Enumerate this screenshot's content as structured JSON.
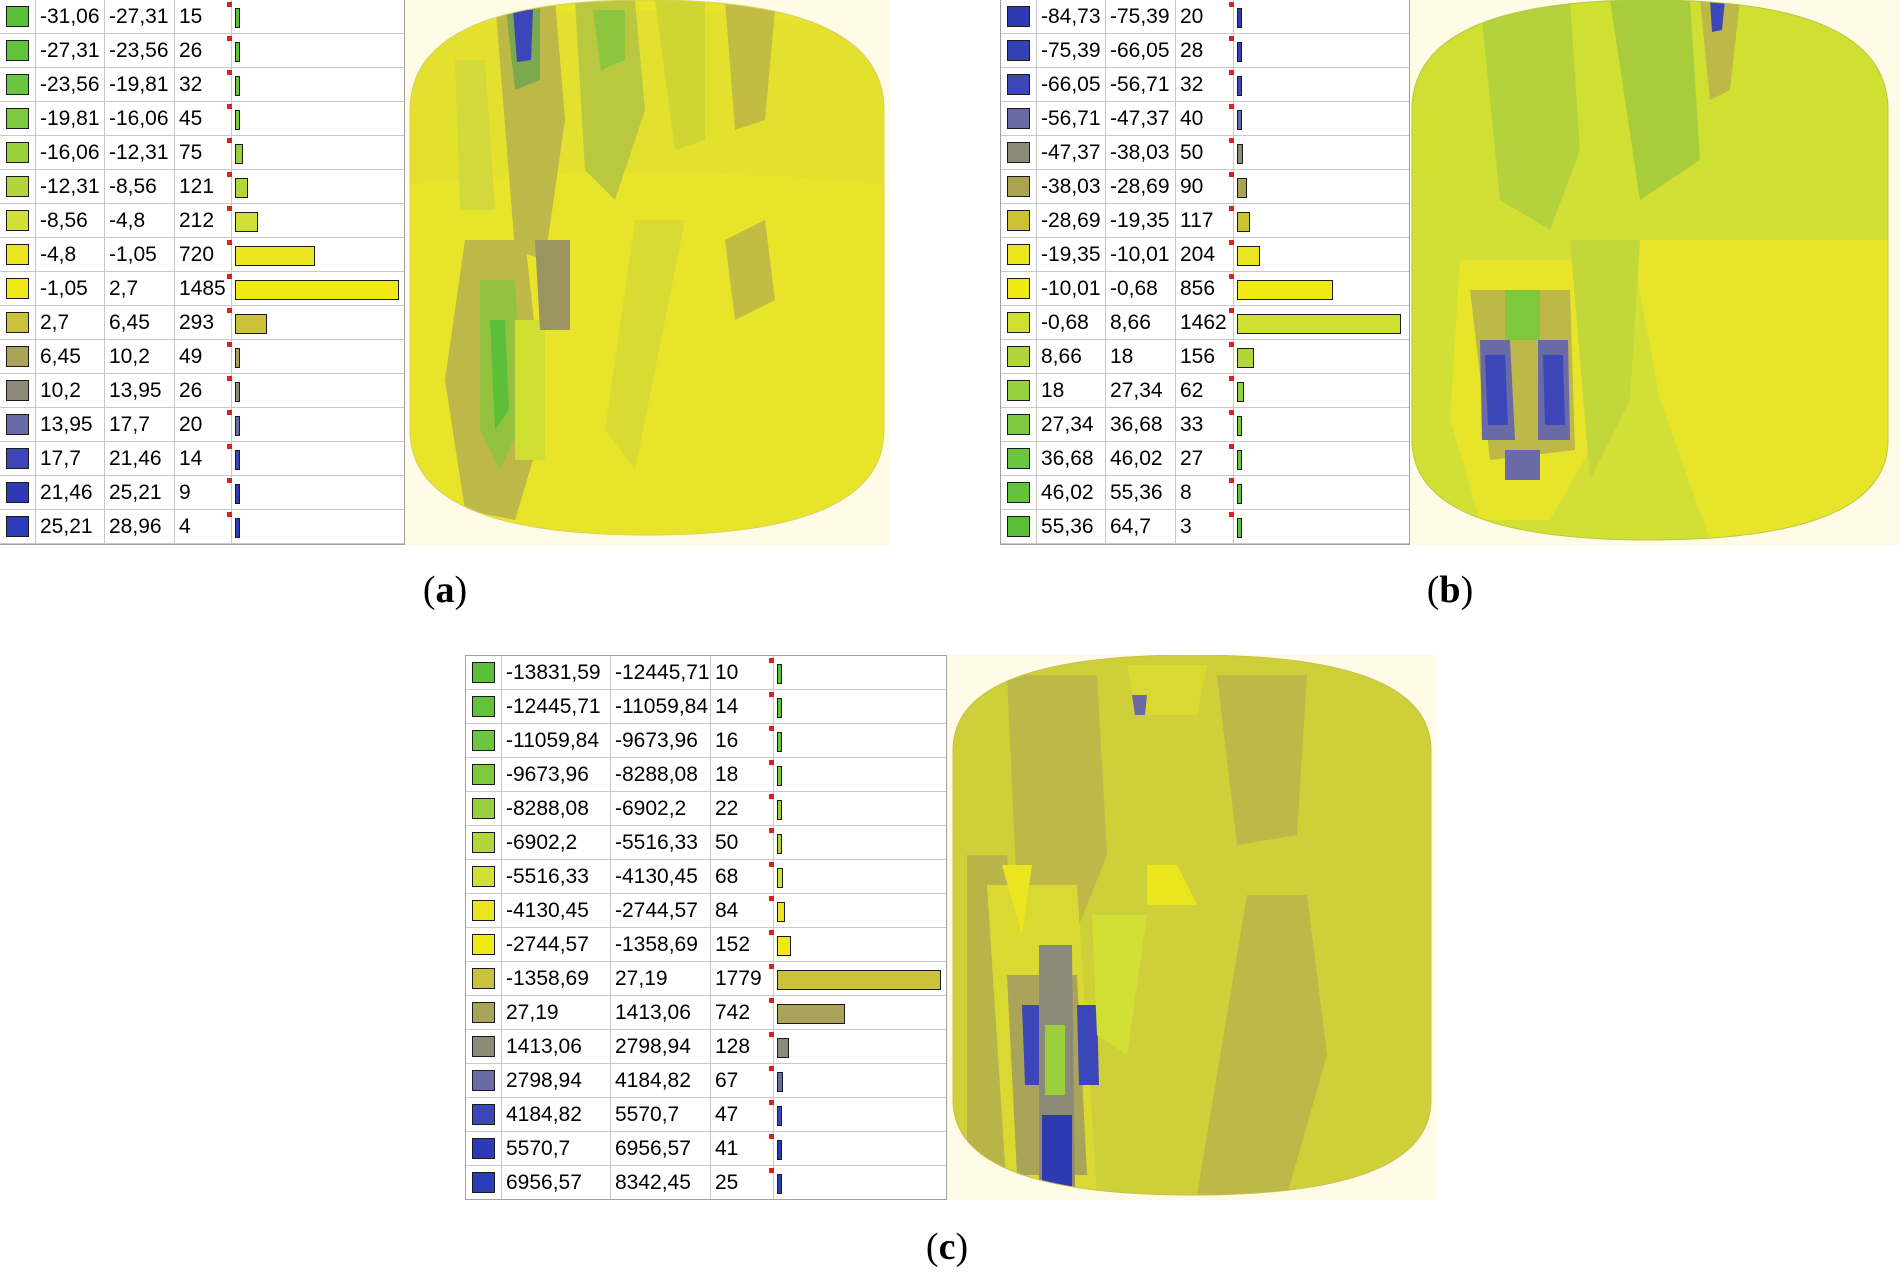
{
  "panels": [
    {
      "caption_letter": "a",
      "rows": [
        {
          "from": "-31,06",
          "to": "-27,31",
          "count": 15,
          "color": "#5cbf3a"
        },
        {
          "from": "-27,31",
          "to": "-23,56",
          "count": 26,
          "color": "#62c23c"
        },
        {
          "from": "-23,56",
          "to": "-19,81",
          "count": 32,
          "color": "#6cc53e"
        },
        {
          "from": "-19,81",
          "to": "-16,06",
          "count": 45,
          "color": "#7ec83e"
        },
        {
          "from": "-16,06",
          "to": "-12,31",
          "count": 75,
          "color": "#98cf3c"
        },
        {
          "from": "-12,31",
          "to": "-8,56",
          "count": 121,
          "color": "#b2d63a"
        },
        {
          "from": "-8,56",
          "to": "-4,8",
          "count": 212,
          "color": "#d2df34"
        },
        {
          "from": "-4,8",
          "to": "-1,05",
          "count": 720,
          "color": "#eae51e"
        },
        {
          "from": "-1,05",
          "to": "2,7",
          "count": 1485,
          "color": "#f0ea16"
        },
        {
          "from": "2,7",
          "to": "6,45",
          "count": 293,
          "color": "#c9c23a"
        },
        {
          "from": "6,45",
          "to": "10,2",
          "count": 49,
          "color": "#a9a45a"
        },
        {
          "from": "10,2",
          "to": "13,95",
          "count": 26,
          "color": "#8c8a78"
        },
        {
          "from": "13,95",
          "to": "17,7",
          "count": 20,
          "color": "#6a6aa6"
        },
        {
          "from": "17,7",
          "to": "21,46",
          "count": 14,
          "color": "#3d46b8"
        },
        {
          "from": "21,46",
          "to": "25,21",
          "count": 9,
          "color": "#2e3ab4"
        },
        {
          "from": "25,21",
          "to": "28,96",
          "count": 4,
          "color": "#2a3cb8"
        }
      ]
    },
    {
      "caption_letter": "b",
      "rows": [
        {
          "from": "-84,73",
          "to": "-75,39",
          "count": 20,
          "color": "#2e3ab4"
        },
        {
          "from": "-75,39",
          "to": "-66,05",
          "count": 28,
          "color": "#3440b6"
        },
        {
          "from": "-66,05",
          "to": "-56,71",
          "count": 32,
          "color": "#3d46b8"
        },
        {
          "from": "-56,71",
          "to": "-47,37",
          "count": 40,
          "color": "#6a6aa6"
        },
        {
          "from": "-47,37",
          "to": "-38,03",
          "count": 50,
          "color": "#8c8a78"
        },
        {
          "from": "-38,03",
          "to": "-28,69",
          "count": 90,
          "color": "#aaa450"
        },
        {
          "from": "-28,69",
          "to": "-19,35",
          "count": 117,
          "color": "#cbc232"
        },
        {
          "from": "-19,35",
          "to": "-10,01",
          "count": 204,
          "color": "#eae51e"
        },
        {
          "from": "-10,01",
          "to": "-0,68",
          "count": 856,
          "color": "#f0ea16"
        },
        {
          "from": "-0,68",
          "to": "8,66",
          "count": 1462,
          "color": "#cfe032"
        },
        {
          "from": "8,66",
          "to": "18",
          "count": 156,
          "color": "#b2d63a"
        },
        {
          "from": "18",
          "to": "27,34",
          "count": 62,
          "color": "#98cf3c"
        },
        {
          "from": "27,34",
          "to": "36,68",
          "count": 33,
          "color": "#7ec83e"
        },
        {
          "from": "36,68",
          "to": "46,02",
          "count": 27,
          "color": "#6cc53e"
        },
        {
          "from": "46,02",
          "to": "55,36",
          "count": 8,
          "color": "#62c23c"
        },
        {
          "from": "55,36",
          "to": "64,7",
          "count": 3,
          "color": "#5cbf3a"
        }
      ]
    },
    {
      "caption_letter": "c",
      "rows": [
        {
          "from": "-13831,59",
          "to": "-12445,71",
          "count": 10,
          "color": "#5cbf3a"
        },
        {
          "from": "-12445,71",
          "to": "-11059,84",
          "count": 14,
          "color": "#62c23c"
        },
        {
          "from": "-11059,84",
          "to": "-9673,96",
          "count": 16,
          "color": "#6cc53e"
        },
        {
          "from": "-9673,96",
          "to": "-8288,08",
          "count": 18,
          "color": "#7ec83e"
        },
        {
          "from": "-8288,08",
          "to": "-6902,2",
          "count": 22,
          "color": "#98cf3c"
        },
        {
          "from": "-6902,2",
          "to": "-5516,33",
          "count": 50,
          "color": "#b2d63a"
        },
        {
          "from": "-5516,33",
          "to": "-4130,45",
          "count": 68,
          "color": "#d2df34"
        },
        {
          "from": "-4130,45",
          "to": "-2744,57",
          "count": 84,
          "color": "#eae51e"
        },
        {
          "from": "-2744,57",
          "to": "-1358,69",
          "count": 152,
          "color": "#f0ea16"
        },
        {
          "from": "-1358,69",
          "to": "27,19",
          "count": 1779,
          "color": "#c9c23a"
        },
        {
          "from": "27,19",
          "to": "1413,06",
          "count": 742,
          "color": "#a9a45a"
        },
        {
          "from": "1413,06",
          "to": "2798,94",
          "count": 128,
          "color": "#8c8a78"
        },
        {
          "from": "2798,94",
          "to": "4184,82",
          "count": 67,
          "color": "#6a6aa6"
        },
        {
          "from": "4184,82",
          "to": "5570,7",
          "count": 47,
          "color": "#3d46b8"
        },
        {
          "from": "5570,7",
          "to": "6956,57",
          "count": 41,
          "color": "#2e3ab4"
        },
        {
          "from": "6956,57",
          "to": "8342,45",
          "count": 25,
          "color": "#2a3cb8"
        }
      ]
    }
  ],
  "colors": {
    "background": "#fffbe6",
    "surface_yellow": "#e8e42a",
    "surface_olive": "#bdb847",
    "surface_green": "#a7cc3c",
    "surface_blue": "#3d46b8",
    "tick_red": "#e21d1d"
  }
}
